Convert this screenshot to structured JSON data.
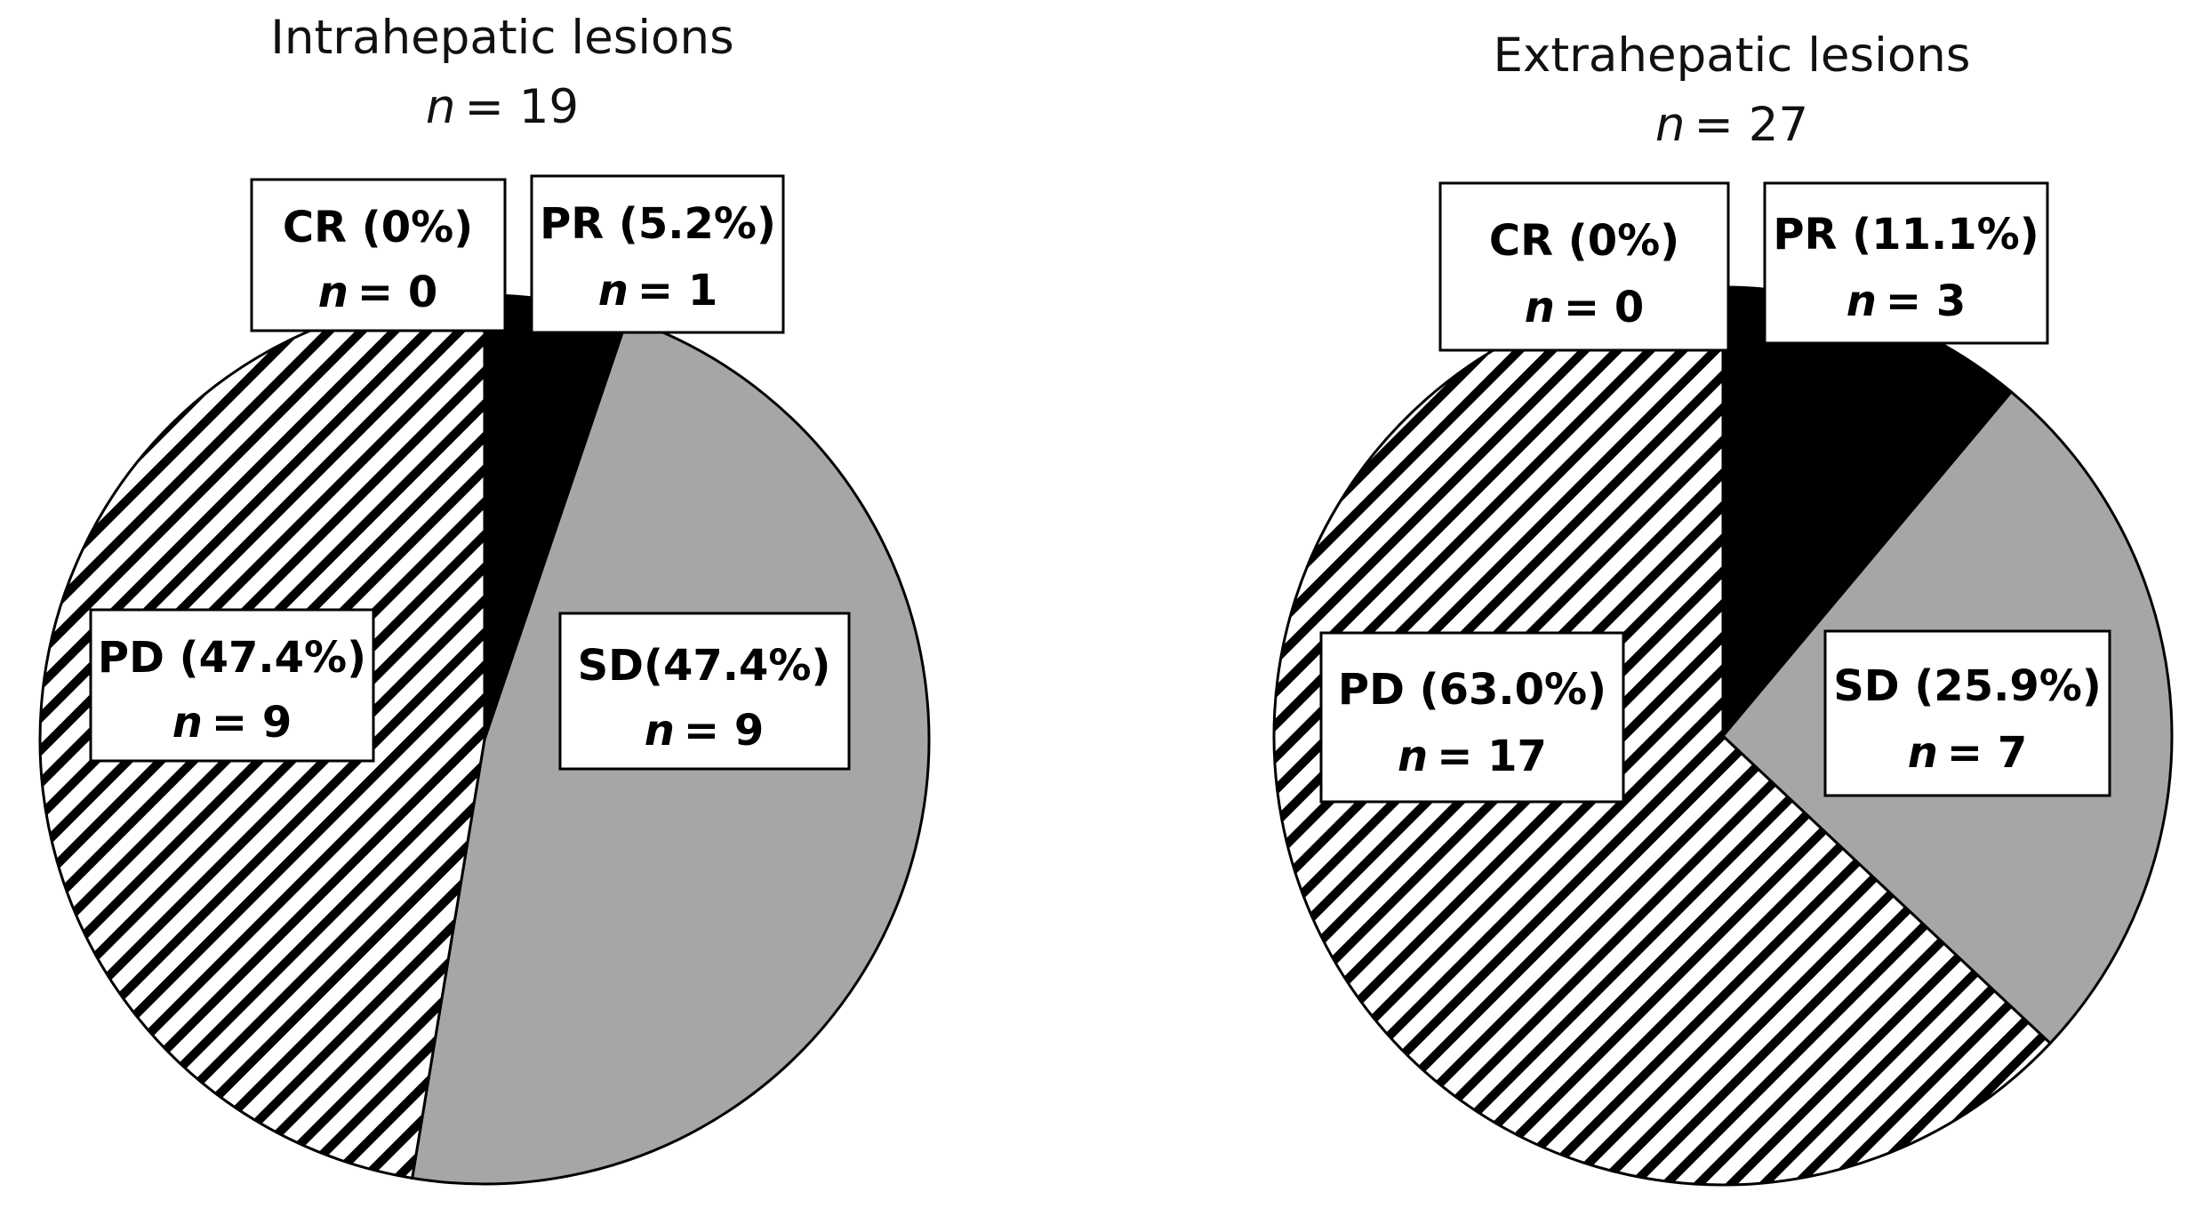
{
  "chart_data": [
    {
      "type": "pie",
      "title": "Intrahepatic lesions",
      "n_label": "n",
      "n_value": "= 19",
      "start_angle_deg": 0,
      "direction": "clockwise",
      "slices": [
        {
          "key": "cr",
          "category": "CR",
          "label": "CR (0%)",
          "percent": 0,
          "count": 0,
          "count_text": "= 0",
          "fill": "none",
          "color": "#ffffff"
        },
        {
          "key": "pr",
          "category": "PR",
          "label": "PR (5.2%)",
          "percent": 5.2,
          "count": 1,
          "count_text": "= 1",
          "fill": "solid",
          "color": "#000000"
        },
        {
          "key": "sd",
          "category": "SD",
          "label": "SD(47.4%)",
          "percent": 47.4,
          "count": 9,
          "count_text": "= 9",
          "fill": "solid",
          "color": "#a6a6a6"
        },
        {
          "key": "pd",
          "category": "PD",
          "label": "PD (47.4%)",
          "percent": 47.4,
          "count": 9,
          "count_text": "= 9",
          "fill": "diagonal-hatch",
          "color": "#000000"
        }
      ]
    },
    {
      "type": "pie",
      "title": "Extrahepatic lesions",
      "n_label": "n",
      "n_value": "= 27",
      "start_angle_deg": 0,
      "direction": "clockwise",
      "slices": [
        {
          "key": "cr",
          "category": "CR",
          "label": "CR (0%)",
          "percent": 0,
          "count": 0,
          "count_text": "= 0",
          "fill": "none",
          "color": "#ffffff"
        },
        {
          "key": "pr",
          "category": "PR",
          "label": "PR (11.1%)",
          "percent": 11.1,
          "count": 3,
          "count_text": "= 3",
          "fill": "solid",
          "color": "#000000"
        },
        {
          "key": "sd",
          "category": "SD",
          "label": "SD (25.9%)",
          "percent": 25.9,
          "count": 7,
          "count_text": "= 7",
          "fill": "solid",
          "color": "#a6a6a6"
        },
        {
          "key": "pd",
          "category": "PD",
          "label": "PD (63.0%)",
          "percent": 63.0,
          "count": 17,
          "count_text": "= 17",
          "fill": "diagonal-hatch",
          "color": "#000000"
        }
      ]
    }
  ]
}
